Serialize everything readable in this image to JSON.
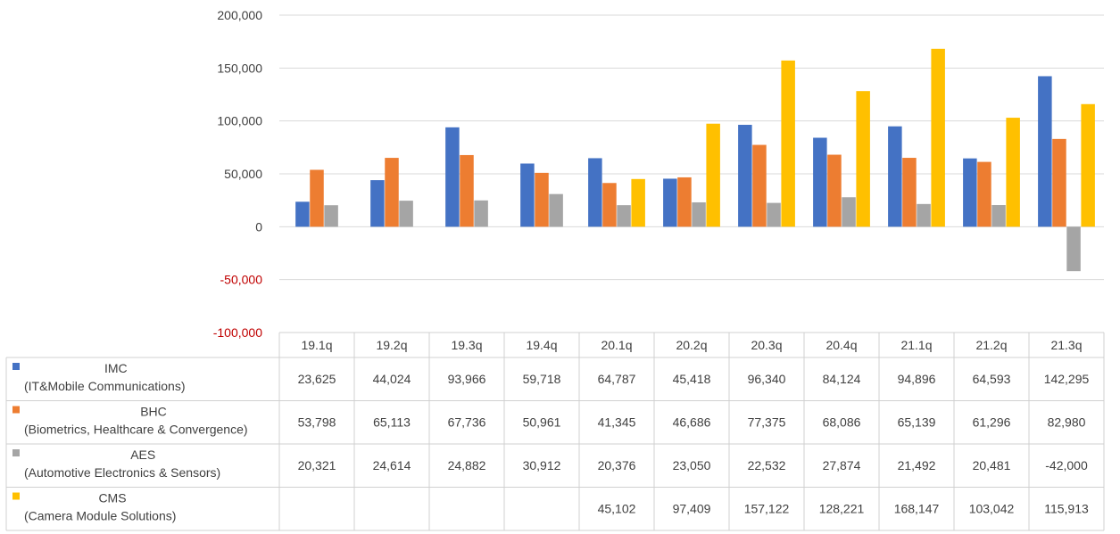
{
  "chart_data": {
    "type": "bar",
    "categories": [
      "19.1q",
      "19.2q",
      "19.3q",
      "19.4q",
      "20.1q",
      "20.2q",
      "20.3q",
      "20.4q",
      "21.1q",
      "21.2q",
      "21.3q"
    ],
    "ylim": [
      -100000,
      200000
    ],
    "yticks": [
      200000,
      150000,
      100000,
      50000,
      0,
      -50000,
      -100000
    ],
    "ytick_labels": [
      "200,000",
      "150,000",
      "100,000",
      "50,000",
      "0",
      "-50,000",
      "-100,000"
    ],
    "negative_tick_color": "#c00000",
    "grid": true,
    "legend": "data-table",
    "series": [
      {
        "name": "IMC",
        "subname": "(IT&Mobile Communications)",
        "color": "#4472c4",
        "values": [
          23625,
          44024,
          93966,
          59718,
          64787,
          45418,
          96340,
          84124,
          94896,
          64593,
          142295
        ],
        "labels": [
          "23,625",
          "44,024",
          "93,966",
          "59,718",
          "64,787",
          "45,418",
          "96,340",
          "84,124",
          "94,896",
          "64,593",
          "142,295"
        ]
      },
      {
        "name": "BHC",
        "subname": "(Biometrics, Healthcare & Convergence)",
        "color": "#ed7d31",
        "values": [
          53798,
          65113,
          67736,
          50961,
          41345,
          46686,
          77375,
          68086,
          65139,
          61296,
          82980
        ],
        "labels": [
          "53,798",
          "65,113",
          "67,736",
          "50,961",
          "41,345",
          "46,686",
          "77,375",
          "68,086",
          "65,139",
          "61,296",
          "82,980"
        ]
      },
      {
        "name": "AES",
        "subname": "(Automotive Electronics & Sensors)",
        "color": "#a5a5a5",
        "values": [
          20321,
          24614,
          24882,
          30912,
          20376,
          23050,
          22532,
          27874,
          21492,
          20481,
          -42000
        ],
        "labels": [
          "20,321",
          "24,614",
          "24,882",
          "30,912",
          "20,376",
          "23,050",
          "22,532",
          "27,874",
          "21,492",
          "20,481",
          "-42,000"
        ]
      },
      {
        "name": "CMS",
        "subname": "(Camera Module Solutions)",
        "color": "#ffc000",
        "values": [
          null,
          null,
          null,
          null,
          45102,
          97409,
          157122,
          128221,
          168147,
          103042,
          115913
        ],
        "labels": [
          "",
          "",
          "",
          "",
          "45,102",
          "97,409",
          "157,122",
          "128,221",
          "168,147",
          "103,042",
          "115,913"
        ]
      }
    ]
  }
}
